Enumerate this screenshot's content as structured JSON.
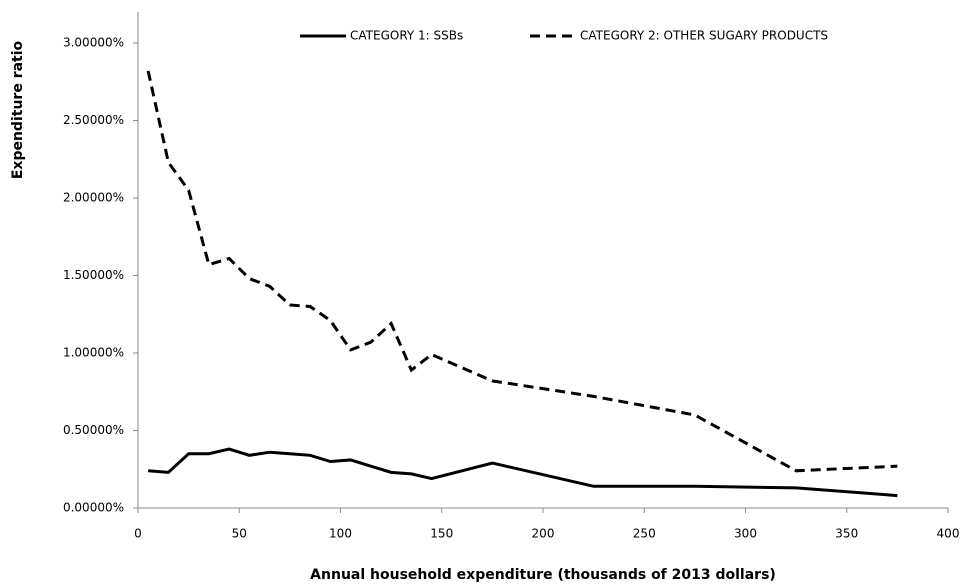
{
  "chart_data": {
    "type": "line",
    "x_label": "Annual household expenditure (thousands of 2013 dollars)",
    "y_label": "Expenditure ratio",
    "x": [
      5,
      15,
      25,
      35,
      45,
      55,
      65,
      75,
      85,
      95,
      105,
      115,
      125,
      135,
      145,
      175,
      225,
      275,
      325,
      375
    ],
    "series": [
      {
        "name": "CATEGORY 1: SSBs",
        "color": "#000000",
        "line_style": "solid",
        "values": [
          0.24,
          0.23,
          0.35,
          0.35,
          0.38,
          0.34,
          0.36,
          0.35,
          0.34,
          0.3,
          0.31,
          0.27,
          0.23,
          0.22,
          0.19,
          0.29,
          0.14,
          0.14,
          0.13,
          0.08
        ]
      },
      {
        "name": "CATEGORY 2: OTHER SUGARY PRODUCTS",
        "color": "#000000",
        "line_style": "dashed",
        "values": [
          2.82,
          2.23,
          2.05,
          1.57,
          1.61,
          1.48,
          1.43,
          1.31,
          1.3,
          1.21,
          1.02,
          1.07,
          1.19,
          0.89,
          0.99,
          0.82,
          0.72,
          0.6,
          0.24,
          0.27
        ]
      }
    ],
    "xlim": [
      0,
      400
    ],
    "xticks": [
      0,
      50,
      100,
      150,
      200,
      250,
      300,
      350,
      400
    ],
    "ylim": [
      0,
      3.2
    ],
    "yticks": [
      {
        "value": 0,
        "label": "0.00000%"
      },
      {
        "value": 0.5,
        "label": "0.50000%"
      },
      {
        "value": 1,
        "label": "1.00000%"
      },
      {
        "value": 1.5,
        "label": "1.50000%"
      },
      {
        "value": 2,
        "label": "2.00000%"
      },
      {
        "value": 2.5,
        "label": "2.50000%"
      },
      {
        "value": 3,
        "label": "3.00000%"
      }
    ],
    "grid": false,
    "legend": "top"
  }
}
